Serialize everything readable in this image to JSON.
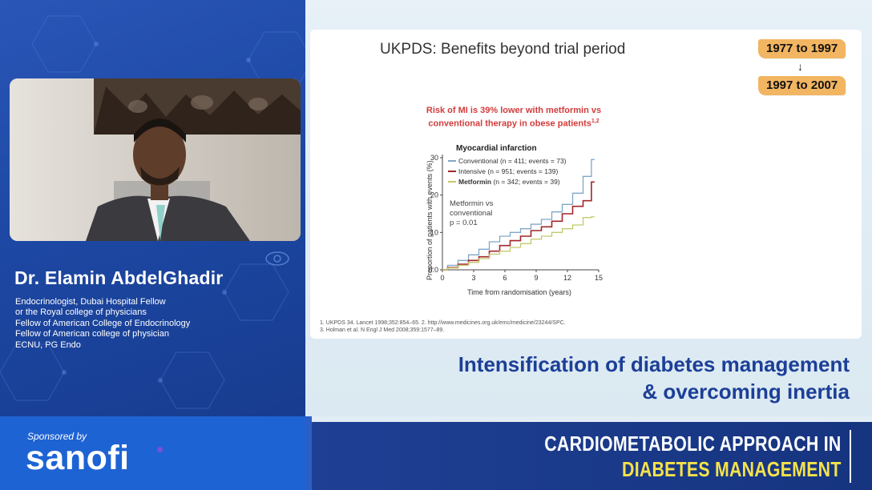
{
  "speaker": {
    "name": "Dr. Elamin AbdelGhadir",
    "credentials": [
      "Endocrinologist, Dubai Hospital Fellow",
      "or the Royal college of physicians",
      "Fellow of American College of Endocrinology",
      "Fellow of American college of physician",
      "ECNU, PG Endo"
    ]
  },
  "slide": {
    "title": "UKPDS: Benefits beyond trial period",
    "tags": [
      "1977 to 1997",
      "1997 to 2007"
    ],
    "arrow": "↓",
    "subtitle_line1": "Risk of MI is 39% lower with metformin vs",
    "subtitle_line2": "conventional therapy in obese patients",
    "subtitle_sup": "1,2",
    "references": [
      "1. UKPDS 34. Lancet 1998;352:854–65.  2. http://www.medicines.org.uk/emc/medicine/23244/SPC.",
      "3. Holman et al. N Engl J Med 2008;359:1577–89."
    ]
  },
  "chart_data": {
    "type": "line",
    "title": "Myocardial infarction",
    "xlabel": "Time from randomisation (years)",
    "ylabel": "Proportion of patients with events (%)",
    "xlim": [
      0,
      15
    ],
    "ylim": [
      0,
      30
    ],
    "xticks": [
      "0",
      "3",
      "6",
      "9",
      "12",
      "15"
    ],
    "yticks": [
      "0.0",
      "10",
      "20",
      "30"
    ],
    "annotation": [
      "Metformin vs",
      "conventional",
      "p = 0.01"
    ],
    "legend_position": "top-left",
    "series": [
      {
        "name": "Conventional (n = 411; events = 73)",
        "name_bold": false,
        "color": "#7fa7c9",
        "x": [
          0,
          1,
          2,
          3,
          4,
          5,
          6,
          7,
          8,
          9,
          10,
          11,
          12,
          13,
          14,
          14.6
        ],
        "y": [
          0,
          1.2,
          2.5,
          4.0,
          5.5,
          7.5,
          9.0,
          10.0,
          11.0,
          12.2,
          13.5,
          15.5,
          17.5,
          20.5,
          25.0,
          29.5
        ]
      },
      {
        "name": "Intensive (n = 951; events = 139)",
        "name_bold": false,
        "color": "#a3262b",
        "x": [
          0,
          1,
          2,
          3,
          4,
          5,
          6,
          7,
          8,
          9,
          10,
          11,
          12,
          13,
          14,
          14.6
        ],
        "y": [
          0,
          0.6,
          1.5,
          2.5,
          3.5,
          5.0,
          6.5,
          7.8,
          9.0,
          10.5,
          11.5,
          13.0,
          15.0,
          17.0,
          18.5,
          23.5
        ]
      },
      {
        "name": "Metformin (n = 342; events = 39)",
        "name_bold": true,
        "color": "#c4c96a",
        "x": [
          0,
          1,
          2,
          3,
          4,
          5,
          6,
          7,
          8,
          9,
          10,
          11,
          12,
          13,
          14,
          14.6
        ],
        "y": [
          0,
          0.5,
          1.2,
          2.0,
          3.0,
          4.2,
          5.0,
          6.0,
          7.0,
          8.2,
          9.0,
          10.0,
          11.0,
          12.0,
          14.0,
          14.2
        ]
      }
    ]
  },
  "heading": {
    "line1": "Intensification of diabetes management",
    "line2": "& overcoming inertia"
  },
  "sponsor": {
    "label": "Sponsored by",
    "logo": "sanofi"
  },
  "brand": {
    "line1": "CARDIOMETABOLIC APPROACH IN",
    "line2": "DIABETES MANAGEMENT",
    "accent_color": "#f5e24a"
  },
  "colors": {
    "panel_blue": "#1d48a4",
    "heading_blue": "#1c3f97",
    "tag_orange": "#f2b561",
    "subtitle_red": "#d23c3c"
  }
}
